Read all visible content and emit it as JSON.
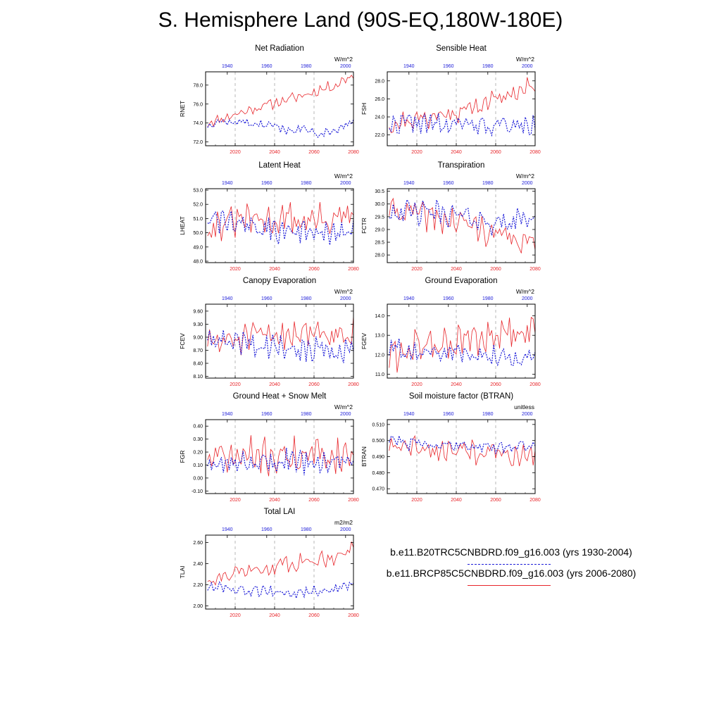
{
  "title": "S. Hemisphere Land (90S-EQ,180W-180E)",
  "colors": {
    "rcp": "#e8262b",
    "hist": "#1c1cd8",
    "axis": "#000000",
    "grid": "#888888"
  },
  "legend": [
    {
      "label": "b.e11.B20TRC5CNBDRD.f09_g16.003 (yrs 1930-2004)",
      "style": "dashed",
      "color": "#1c1cd8"
    },
    {
      "label": "b.e11.BRCP85C5CNBDRD.f09_g16.003 (yrs 2006-2080)",
      "style": "solid",
      "color": "#e8262b"
    }
  ],
  "chart_data": [
    {
      "type": "line",
      "title": "Net Radiation",
      "ylabel": "RNET",
      "units": "W/m^2",
      "ylim": [
        71.6,
        79.4
      ],
      "yticks": [
        "72.0",
        "74.0",
        "76.0",
        "78.0"
      ],
      "x_bottom": {
        "range": [
          2005,
          2080
        ],
        "ticks": [
          "2020",
          "2040",
          "2060",
          "2080"
        ]
      },
      "x_top": {
        "range": [
          1929,
          2004
        ],
        "ticks": [
          "1940",
          "1960",
          "1980",
          "2000"
        ]
      },
      "series": [
        {
          "name": "BRCP85 (2006-2080)",
          "color": "#e8262b",
          "style": "solid",
          "start": 2006,
          "base": [
            74.0,
            74.2,
            74.1,
            74.4,
            74.3,
            74.6,
            74.5,
            74.8,
            74.7,
            75.0,
            74.9,
            75.2,
            75.1,
            75.3,
            75.5,
            75.4,
            75.7,
            75.6,
            75.9,
            75.8,
            76.0,
            75.9,
            76.2,
            76.1,
            76.4,
            76.3,
            76.5,
            76.4,
            76.7,
            76.6,
            76.9,
            76.8,
            77.1,
            77.0,
            77.3,
            77.2,
            77.4,
            77.6,
            77.5,
            77.8,
            77.7,
            78.0,
            77.9,
            78.2,
            78.4,
            78.6,
            78.8,
            78.9,
            79.0
          ],
          "amp": 0.55,
          "n": 75,
          "seed": 11
        },
        {
          "name": "B20TRC (1930-2004)",
          "color": "#1c1cd8",
          "style": "dashed",
          "start": 1930,
          "base": [
            73.8,
            74.0,
            74.1,
            74.2,
            74.1,
            74.0,
            74.2,
            74.1,
            74.0,
            73.9,
            74.0,
            73.8,
            73.7,
            73.6,
            73.5,
            73.4,
            73.3,
            73.2,
            73.3,
            73.4,
            73.2,
            73.0,
            72.8,
            72.9,
            73.1,
            73.3,
            73.5,
            73.7,
            74.0,
            74.3
          ],
          "amp": 0.45,
          "n": 75,
          "seed": 12
        }
      ]
    },
    {
      "type": "line",
      "title": "Sensible Heat",
      "ylabel": "FSH",
      "units": "W/m^2",
      "ylim": [
        20.8,
        29.0
      ],
      "yticks": [
        "22.0",
        "24.0",
        "26.0",
        "28.0"
      ],
      "x_bottom": {
        "range": [
          2005,
          2080
        ],
        "ticks": [
          "2020",
          "2040",
          "2060",
          "2080"
        ]
      },
      "x_top": {
        "range": [
          1929,
          2004
        ],
        "ticks": [
          "1940",
          "1960",
          "1980",
          "2000"
        ]
      },
      "series": [
        {
          "name": "BRCP85 (2006-2080)",
          "color": "#e8262b",
          "style": "solid",
          "start": 2006,
          "base": [
            23.0,
            23.3,
            23.5,
            23.6,
            23.7,
            23.8,
            24.0,
            24.1,
            24.3,
            24.5,
            24.6,
            24.8,
            25.0,
            25.3,
            25.6,
            25.9,
            26.2,
            26.5,
            26.7,
            27.0,
            27.2,
            27.4
          ],
          "amp": 1.1,
          "n": 75,
          "seed": 21
        },
        {
          "name": "B20TRC (1930-2004)",
          "color": "#1c1cd8",
          "style": "dashed",
          "start": 1930,
          "base": [
            23.2,
            23.3,
            23.4,
            23.2,
            23.1,
            23.0,
            23.2,
            23.1,
            23.0,
            23.1,
            23.0,
            22.9,
            23.0
          ],
          "amp": 1.1,
          "n": 75,
          "seed": 22
        }
      ]
    },
    {
      "type": "line",
      "title": "Latent Heat",
      "ylabel": "LHEAT",
      "units": "W/m^2",
      "ylim": [
        47.9,
        53.1
      ],
      "yticks": [
        "48.0",
        "49.0",
        "50.0",
        "51.0",
        "52.0",
        "53.0"
      ],
      "x_bottom": {
        "range": [
          2005,
          2080
        ],
        "ticks": [
          "2020",
          "2040",
          "2060",
          "2080"
        ]
      },
      "x_top": {
        "range": [
          1929,
          2004
        ],
        "ticks": [
          "1940",
          "1960",
          "1980",
          "2000"
        ]
      },
      "series": [
        {
          "name": "BRCP85 (2006-2080)",
          "color": "#e8262b",
          "style": "solid",
          "start": 2006,
          "base": [
            50.4,
            50.6,
            50.8,
            50.9,
            50.8,
            50.9,
            51.0,
            50.8,
            50.9,
            51.0,
            50.9,
            51.0
          ],
          "amp": 1.1,
          "n": 75,
          "seed": 31
        },
        {
          "name": "B20TRC (1930-2004)",
          "color": "#1c1cd8",
          "style": "dashed",
          "start": 1930,
          "base": [
            50.9,
            50.8,
            50.6,
            50.4,
            50.3,
            50.2,
            50.1,
            50.0,
            49.9,
            50.0,
            50.0
          ],
          "amp": 0.9,
          "n": 75,
          "seed": 32
        }
      ]
    },
    {
      "type": "line",
      "title": "Transpiration",
      "ylabel": "FCTR",
      "units": "W/m^2",
      "ylim": [
        27.7,
        30.6
      ],
      "yticks": [
        "28.0",
        "28.5",
        "29.0",
        "29.5",
        "30.0",
        "30.5"
      ],
      "x_bottom": {
        "range": [
          2005,
          2080
        ],
        "ticks": [
          "2020",
          "2040",
          "2060",
          "2080"
        ]
      },
      "x_top": {
        "range": [
          1929,
          2004
        ],
        "ticks": [
          "1940",
          "1960",
          "1980",
          "2000"
        ]
      },
      "series": [
        {
          "name": "BRCP85 (2006-2080)",
          "color": "#e8262b",
          "style": "solid",
          "start": 2006,
          "base": [
            29.8,
            29.7,
            29.6,
            29.5,
            29.4,
            29.3,
            29.2,
            29.0,
            28.8,
            28.6,
            28.5,
            28.4
          ],
          "amp": 0.55,
          "n": 75,
          "seed": 41
        },
        {
          "name": "B20TRC (1930-2004)",
          "color": "#1c1cd8",
          "style": "dashed",
          "start": 1930,
          "base": [
            29.8,
            29.7,
            29.6,
            29.7,
            29.6,
            29.5,
            29.4,
            29.3,
            29.2,
            29.4,
            29.6
          ],
          "amp": 0.45,
          "n": 75,
          "seed": 42
        }
      ]
    },
    {
      "type": "line",
      "title": "Canopy Evaporation",
      "ylabel": "FCEV",
      "units": "W/m^2",
      "ylim": [
        8.06,
        9.76
      ],
      "yticks": [
        "8.10",
        "8.40",
        "8.70",
        "9.00",
        "9.30",
        "9.60"
      ],
      "x_bottom": {
        "range": [
          2005,
          2080
        ],
        "ticks": [
          "2020",
          "2040",
          "2060",
          "2080"
        ]
      },
      "x_top": {
        "range": [
          1929,
          2004
        ],
        "ticks": [
          "1940",
          "1960",
          "1980",
          "2000"
        ]
      },
      "series": [
        {
          "name": "BRCP85 (2006-2080)",
          "color": "#e8262b",
          "style": "solid",
          "start": 2006,
          "base": [
            8.85,
            8.9,
            8.95,
            9.0,
            9.05,
            9.1,
            9.15,
            9.15,
            9.1,
            9.1
          ],
          "amp": 0.35,
          "n": 75,
          "seed": 51
        },
        {
          "name": "B20TRC (1930-2004)",
          "color": "#1c1cd8",
          "style": "dashed",
          "start": 1930,
          "base": [
            8.95,
            8.9,
            8.85,
            8.8,
            8.75,
            8.7,
            8.7,
            8.65,
            8.7
          ],
          "amp": 0.28,
          "n": 75,
          "seed": 52
        }
      ]
    },
    {
      "type": "line",
      "title": "Ground Evaporation",
      "ylabel": "FGEV",
      "units": "W/m^2",
      "ylim": [
        10.8,
        14.6
      ],
      "yticks": [
        "11.0",
        "12.0",
        "13.0",
        "14.0"
      ],
      "x_bottom": {
        "range": [
          2005,
          2080
        ],
        "ticks": [
          "2020",
          "2040",
          "2060",
          "2080"
        ]
      },
      "x_top": {
        "range": [
          1929,
          2004
        ],
        "ticks": [
          "1940",
          "1960",
          "1980",
          "2000"
        ]
      },
      "series": [
        {
          "name": "BRCP85 (2006-2080)",
          "color": "#e8262b",
          "style": "solid",
          "start": 2006,
          "base": [
            12.0,
            12.2,
            12.4,
            12.5,
            12.6,
            12.7,
            12.8,
            12.9,
            13.0,
            13.2
          ],
          "amp": 0.9,
          "n": 75,
          "seed": 61
        },
        {
          "name": "B20TRC (1930-2004)",
          "color": "#1c1cd8",
          "style": "dashed",
          "start": 1930,
          "base": [
            12.3,
            12.2,
            12.1,
            12.1,
            12.0,
            12.0,
            11.9,
            11.9
          ],
          "amp": 0.5,
          "n": 75,
          "seed": 62
        }
      ]
    },
    {
      "type": "line",
      "title": "Ground Heat + Snow Melt",
      "ylabel": "FGR",
      "units": "W/m^2",
      "ylim": [
        -0.12,
        0.45
      ],
      "yticks": [
        "-0.10",
        "0.00",
        "0.10",
        "0.20",
        "0.30",
        "0.40"
      ],
      "x_bottom": {
        "range": [
          2005,
          2080
        ],
        "ticks": [
          "2020",
          "2040",
          "2060",
          "2080"
        ]
      },
      "x_top": {
        "range": [
          1929,
          2004
        ],
        "ticks": [
          "1940",
          "1960",
          "1980",
          "2000"
        ]
      },
      "series": [
        {
          "name": "BRCP85 (2006-2080)",
          "color": "#e8262b",
          "style": "solid",
          "start": 2006,
          "base": [
            0.15,
            0.16,
            0.17,
            0.17,
            0.18,
            0.18
          ],
          "amp": 0.14,
          "n": 75,
          "seed": 71
        },
        {
          "name": "B20TRC (1930-2004)",
          "color": "#1c1cd8",
          "style": "dashed",
          "start": 1930,
          "base": [
            0.12,
            0.12,
            0.13,
            0.13,
            0.12,
            0.12
          ],
          "amp": 0.09,
          "n": 75,
          "seed": 72
        }
      ]
    },
    {
      "type": "line",
      "title": "Soil moisture factor (BTRAN)",
      "ylabel": "BTRAN",
      "units": "unitless",
      "ylim": [
        0.467,
        0.513
      ],
      "yticks": [
        "0.470",
        "0.480",
        "0.490",
        "0.500",
        "0.510"
      ],
      "x_bottom": {
        "range": [
          2005,
          2080
        ],
        "ticks": [
          "2020",
          "2040",
          "2060",
          "2080"
        ]
      },
      "x_top": {
        "range": [
          1929,
          2004
        ],
        "ticks": [
          "1940",
          "1960",
          "1980",
          "2000"
        ]
      },
      "series": [
        {
          "name": "BRCP85 (2006-2080)",
          "color": "#e8262b",
          "style": "solid",
          "start": 2006,
          "base": [
            0.498,
            0.496,
            0.495,
            0.494,
            0.493,
            0.492,
            0.491,
            0.49
          ],
          "amp": 0.007,
          "n": 75,
          "seed": 81
        },
        {
          "name": "B20TRC (1930-2004)",
          "color": "#1c1cd8",
          "style": "dashed",
          "start": 1930,
          "base": [
            0.5,
            0.498,
            0.497,
            0.497,
            0.496,
            0.497,
            0.498
          ],
          "amp": 0.004,
          "n": 75,
          "seed": 82
        }
      ]
    },
    {
      "type": "line",
      "title": "Total LAI",
      "ylabel": "TLAI",
      "units": "m2/m2",
      "ylim": [
        1.97,
        2.67
      ],
      "yticks": [
        "2.00",
        "2.20",
        "2.40",
        "2.60"
      ],
      "x_bottom": {
        "range": [
          2005,
          2080
        ],
        "ticks": [
          "2020",
          "2040",
          "2060",
          "2080"
        ]
      },
      "x_top": {
        "range": [
          1929,
          2004
        ],
        "ticks": [
          "1940",
          "1960",
          "1980",
          "2000"
        ]
      },
      "series": [
        {
          "name": "BRCP85 (2006-2080)",
          "color": "#e8262b",
          "style": "solid",
          "start": 2006,
          "base": [
            2.26,
            2.28,
            2.3,
            2.32,
            2.34,
            2.36,
            2.38,
            2.4,
            2.42,
            2.44,
            2.46,
            2.5,
            2.54
          ],
          "amp": 0.08,
          "n": 75,
          "seed": 91
        },
        {
          "name": "B20TRC (1930-2004)",
          "color": "#1c1cd8",
          "style": "dashed",
          "start": 1930,
          "base": [
            2.18,
            2.16,
            2.15,
            2.14,
            2.13,
            2.12,
            2.13,
            2.14,
            2.16,
            2.2
          ],
          "amp": 0.05,
          "n": 75,
          "seed": 92
        }
      ]
    }
  ]
}
